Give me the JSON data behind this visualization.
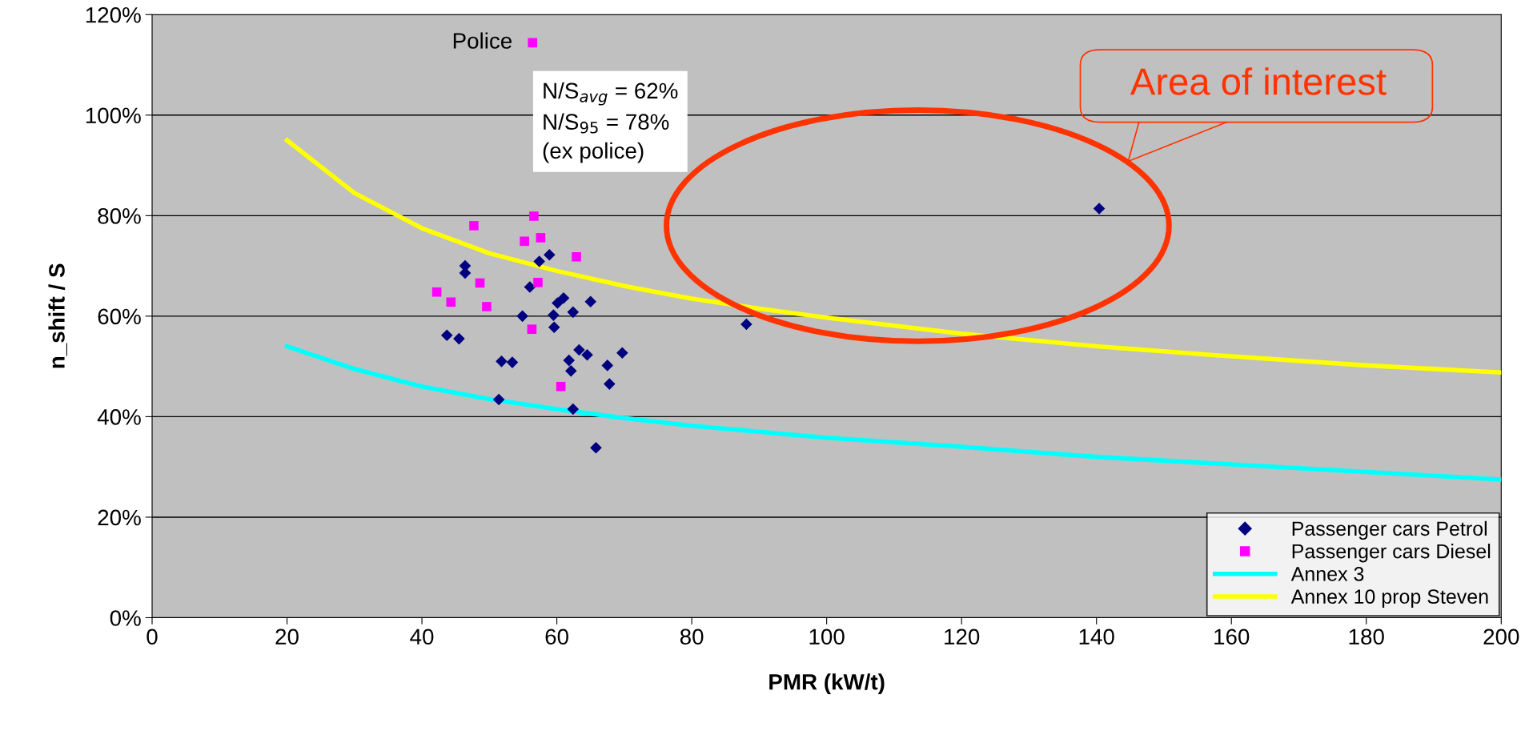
{
  "chart_data": {
    "type": "scatter",
    "xlabel": "PMR (kW/t)",
    "ylabel": "n_shift / S",
    "xlim": [
      0,
      200
    ],
    "xticks": [
      0,
      20,
      40,
      60,
      80,
      100,
      120,
      140,
      160,
      180,
      200
    ],
    "ylim": [
      0,
      120
    ],
    "yticks": [
      {
        "value": 0,
        "label": "0%"
      },
      {
        "value": 20,
        "label": "20%"
      },
      {
        "value": 40,
        "label": "40%"
      },
      {
        "value": 60,
        "label": "60%"
      },
      {
        "value": 80,
        "label": "80%"
      },
      {
        "value": 100,
        "label": "100%"
      },
      {
        "value": 120,
        "label": "120%"
      }
    ],
    "grid": "y",
    "legend": "bottom right",
    "series": [
      {
        "name": "Passenger cars Petrol",
        "marker": "diamond",
        "color": "#000080",
        "x": [
          46.4,
          46.4,
          57.4,
          58.9,
          56.0,
          61.0,
          60.1,
          65.0,
          59.5,
          54.9,
          62.4,
          59.6,
          43.7,
          45.5,
          51.8,
          53.4,
          63.3,
          64.5,
          69.7,
          61.8,
          62.1,
          67.5,
          67.8,
          51.4,
          62.4,
          65.8,
          88.1,
          140.4
        ],
        "values": [
          70.0,
          68.6,
          70.9,
          72.2,
          65.8,
          63.6,
          62.6,
          62.9,
          60.2,
          60.0,
          60.8,
          57.8,
          56.2,
          55.5,
          51.0,
          50.8,
          53.3,
          52.3,
          52.7,
          51.2,
          49.1,
          50.2,
          46.5,
          43.4,
          41.5,
          33.8,
          58.4,
          81.4
        ]
      },
      {
        "name": "Passenger cars Diesel",
        "marker": "square",
        "color": "#ff00ff",
        "x": [
          56.4,
          56.6,
          47.7,
          55.2,
          57.6,
          62.9,
          57.2,
          48.6,
          42.2,
          44.3,
          49.6,
          56.3,
          60.6
        ],
        "values": [
          114.4,
          79.9,
          78.0,
          74.9,
          75.6,
          71.8,
          66.7,
          66.6,
          64.8,
          62.8,
          61.9,
          57.4,
          46.0
        ]
      },
      {
        "name": "Annex 3",
        "type": "line",
        "marker": "none",
        "line_style": "solid",
        "color": "#00ffff",
        "x": [
          20,
          30,
          40,
          50,
          60,
          70,
          80,
          90,
          100,
          120,
          140,
          160,
          180,
          200
        ],
        "values": [
          54,
          49.5,
          46,
          43.5,
          41.5,
          39.7,
          38.2,
          37,
          35.8,
          34,
          32,
          30.5,
          29,
          27.5
        ]
      },
      {
        "name": "Annex 10 prop Steven",
        "type": "line",
        "marker": "none",
        "line_style": "solid",
        "color": "#ffff00",
        "x": [
          20,
          30,
          40,
          50,
          60,
          70,
          80,
          90,
          100,
          120,
          140,
          160,
          180,
          200
        ],
        "values": [
          95,
          84.5,
          77.5,
          72.5,
          69,
          66,
          63.5,
          61.5,
          59.7,
          56.5,
          54,
          52,
          50.2,
          48.8
        ]
      }
    ],
    "annotations": [
      {
        "text": "Police",
        "x": 56.4,
        "y": 114.4
      },
      "N/S$_{avg}$ = 62%\nN/S$_{95}$ = 78%\n(ex police)",
      "Area of interest"
    ]
  }
}
